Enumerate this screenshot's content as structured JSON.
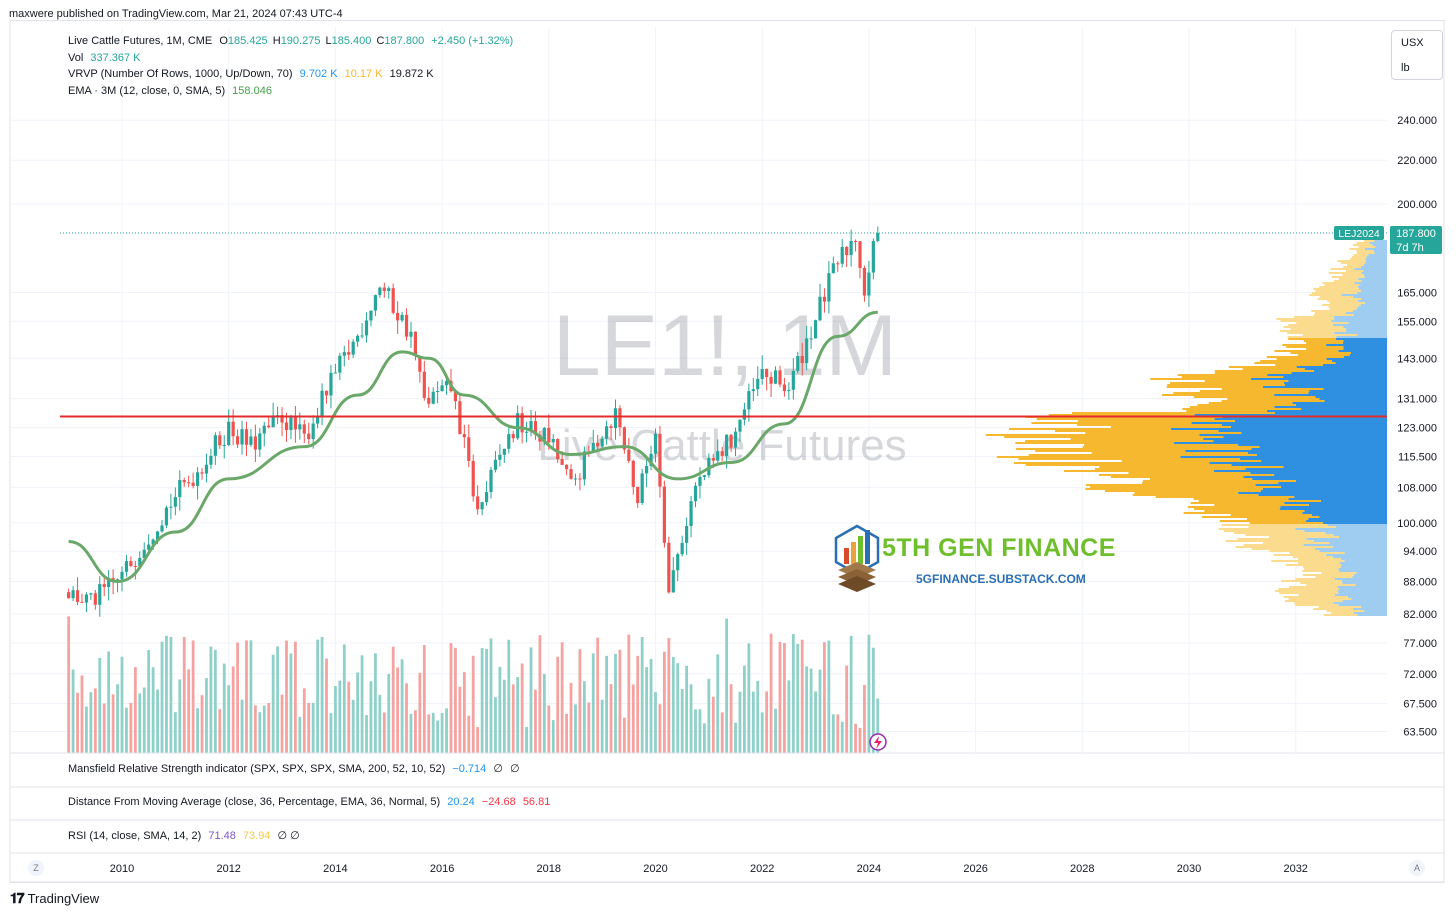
{
  "publisher": "maxwere published on TradingView.com, Mar 21, 2024 07:43 UTC-4",
  "legend": {
    "symbol": "Live Cattle Futures, 1M, CME",
    "o_label": "O",
    "o": "185.425",
    "h_label": "H",
    "h": "190.275",
    "l_label": "L",
    "l": "185.400",
    "c_label": "C",
    "c": "187.800",
    "change": "+2.450 (+1.32%)",
    "vol_label": "Vol",
    "vol": "337.367 K",
    "vrvp_label": "VRVP (Number Of Rows, 1000, Up/Down, 70)",
    "vrvp_up": "9.702 K",
    "vrvp_down": "10.17 K",
    "vrvp_total": "19.872 K",
    "ema_label": "EMA · 3M (12, close, 0, SMA, 5)",
    "ema": "158.046"
  },
  "units": {
    "currency": "USX",
    "unit": "lb"
  },
  "watermark": {
    "ticker": "LE1!, 1M",
    "name": "Live Cattle Futures"
  },
  "brand": {
    "title": "5TH GEN FINANCE",
    "url": "5GFINANCE.SUBSTACK.COM"
  },
  "price_badge": {
    "contract": "LEJ2024",
    "price": "187.800",
    "countdown": "7d 7h"
  },
  "indicators": [
    {
      "label": "Mansfield Relative Strength indicator (SPX, SPX, SPX, SMA, 200, 52, 10, 52)",
      "v1": "−0.714",
      "v2": "∅",
      "v3": "∅",
      "c1": "#2196f3"
    },
    {
      "label": "Distance From Moving Average (close, 36, Percentage, EMA, 36, Normal, 5)",
      "v1": "20.24",
      "v2": "−24.68",
      "v3": "56.81",
      "c1": "#2196f3",
      "c2": "#f23645",
      "c3": "#f23645"
    },
    {
      "label": "RSI (14, close, SMA, 14, 2)",
      "v1": "71.48",
      "v2": "73.94",
      "v3": "∅ ∅",
      "c1": "#7e57c2",
      "c2": "#f7c948"
    }
  ],
  "footer": {
    "brand": "TradingView",
    "z_button": "Z",
    "a_button": "A"
  },
  "colors": {
    "up": "#26a69a",
    "down": "#ef5350",
    "ema": "#6aa86a",
    "hline": "#e32b2b",
    "vp_up": "#2f8fe0",
    "vp_down": "#f5b82e"
  },
  "chart_data": {
    "type": "candlestick",
    "x_ticks": [
      "2010",
      "2012",
      "2014",
      "2016",
      "2018",
      "2020",
      "2022",
      "2024",
      "2026",
      "2028",
      "2030",
      "2032"
    ],
    "y_ticks": [
      "240.000",
      "220.000",
      "200.000",
      "165.000",
      "155.000",
      "143.000",
      "131.000",
      "123.000",
      "115.500",
      "108.000",
      "100.000",
      "94.000",
      "88.000",
      "82.000",
      "77.000",
      "72.000",
      "67.500",
      "63.500"
    ],
    "y_scale": "log",
    "last_price": 187.8,
    "horizontal_line": 126,
    "close_path": [
      [
        "2009-01",
        86
      ],
      [
        "2009-06",
        84
      ],
      [
        "2010-01",
        89
      ],
      [
        "2010-06",
        96
      ],
      [
        "2011-01",
        106
      ],
      [
        "2011-06",
        112
      ],
      [
        "2012-01",
        123
      ],
      [
        "2012-06",
        118
      ],
      [
        "2013-01",
        126
      ],
      [
        "2013-06",
        120
      ],
      [
        "2014-01",
        138
      ],
      [
        "2014-06",
        150
      ],
      [
        "2014-11",
        168
      ],
      [
        "2015-06",
        150
      ],
      [
        "2015-09",
        130
      ],
      [
        "2016-03",
        134
      ],
      [
        "2016-09",
        102
      ],
      [
        "2017-03",
        118
      ],
      [
        "2017-06",
        124
      ],
      [
        "2018-01",
        120
      ],
      [
        "2018-06",
        108
      ],
      [
        "2019-01",
        122
      ],
      [
        "2019-04",
        127
      ],
      [
        "2019-09",
        105
      ],
      [
        "2020-01",
        122
      ],
      [
        "2020-04",
        86
      ],
      [
        "2020-10",
        108
      ],
      [
        "2021-06",
        120
      ],
      [
        "2022-01",
        138
      ],
      [
        "2022-07",
        134
      ],
      [
        "2023-01",
        156
      ],
      [
        "2023-06",
        176
      ],
      [
        "2023-10",
        187
      ],
      [
        "2023-12",
        166
      ],
      [
        "2024-03",
        187.8
      ]
    ],
    "ema_path": [
      [
        "2009-01",
        96
      ],
      [
        "2009-12",
        88
      ],
      [
        "2011-01",
        98
      ],
      [
        "2012-01",
        110
      ],
      [
        "2013-06",
        118
      ],
      [
        "2014-06",
        132
      ],
      [
        "2015-04",
        145
      ],
      [
        "2015-10",
        143
      ],
      [
        "2016-06",
        132
      ],
      [
        "2017-06",
        123
      ],
      [
        "2018-06",
        116
      ],
      [
        "2019-06",
        118
      ],
      [
        "2020-06",
        110
      ],
      [
        "2021-06",
        114
      ],
      [
        "2022-06",
        124
      ],
      [
        "2023-06",
        150
      ],
      [
        "2024-03",
        158.046
      ]
    ]
  }
}
